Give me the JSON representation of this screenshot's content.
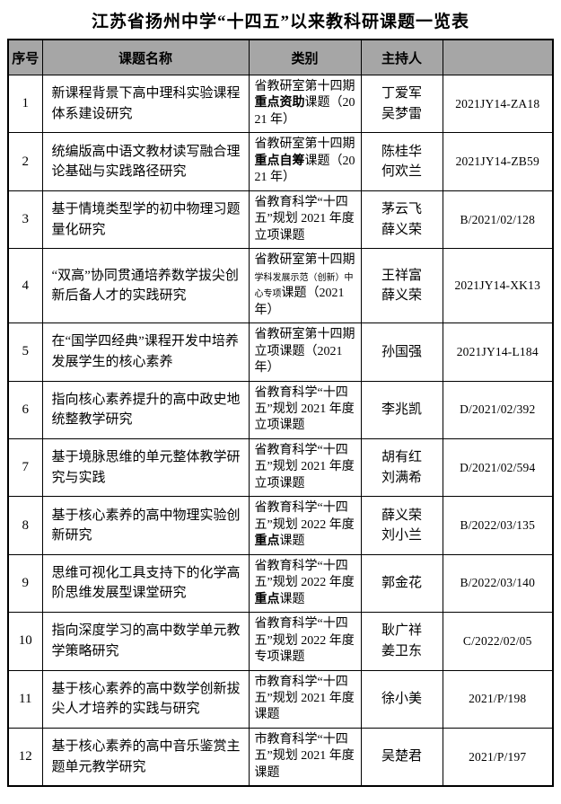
{
  "title": "江苏省扬州中学“十四五”以来教科研课题一览表",
  "colors": {
    "header_bg": "#a6a6a6",
    "border": "#000000",
    "text": "#000000"
  },
  "table": {
    "headers": [
      "序号",
      "课题名称",
      "类别",
      "主持人",
      ""
    ],
    "rows": [
      {
        "no": "1",
        "name": "新课程背景下高中理科实验课程体系建设研究",
        "category": [
          {
            "t": "省教研室第十四期"
          },
          {
            "t": "重点资助",
            "b": true
          },
          {
            "t": "课题（2021 年）"
          }
        ],
        "hosts": [
          "丁爱军",
          "吴梦雷"
        ],
        "code": "2021JY14-ZA18"
      },
      {
        "no": "2",
        "name": "统编版高中语文教材读写融合理论基础与实践路径研究",
        "category": [
          {
            "t": "省教研室第十四期"
          },
          {
            "t": "重点自筹",
            "b": true
          },
          {
            "t": "课题（2021 年）"
          }
        ],
        "hosts": [
          "陈桂华",
          "何欢兰"
        ],
        "code": "2021JY14-ZB59"
      },
      {
        "no": "3",
        "name": "基于情境类型学的初中物理习题量化研究",
        "category": [
          {
            "t": "省教育科学“十四五”规划 2021 年度立项课题"
          }
        ],
        "hosts": [
          "茅云飞",
          "薛义荣"
        ],
        "code": "B/2021/02/128"
      },
      {
        "no": "4",
        "name": "“双高”协同贯通培养数学拔尖创新后备人才的实践研究",
        "category": [
          {
            "t": "省教研室第十四期"
          },
          {
            "t": "学科发展示范（创新）中心专项",
            "s": true
          },
          {
            "t": "课题（2021 年）"
          }
        ],
        "hosts": [
          "王祥富",
          "薛义荣"
        ],
        "code": "2021JY14-XK13"
      },
      {
        "no": "5",
        "name": "在“国学四经典”课程开发中培养发展学生的核心素养",
        "category": [
          {
            "t": "省教研室第十四期立项课题（2021 年）"
          }
        ],
        "hosts": [
          "孙国强"
        ],
        "code": "2021JY14-L184"
      },
      {
        "no": "6",
        "name": "指向核心素养提升的高中政史地统整教学研究",
        "category": [
          {
            "t": "省教育科学“十四五”规划 2021 年度立项课题"
          }
        ],
        "hosts": [
          "李兆凯"
        ],
        "code": "D/2021/02/392"
      },
      {
        "no": "7",
        "name": "基于境脉思维的单元整体教学研究与实践",
        "category": [
          {
            "t": "省教育科学“十四五”规划 2021 年度立项课题"
          }
        ],
        "hosts": [
          "胡有红",
          "刘满希"
        ],
        "code": "D/2021/02/594"
      },
      {
        "no": "8",
        "name": "基于核心素养的高中物理实验创新研究",
        "category": [
          {
            "t": "省教育科学“十四五”规划 2022 年度"
          },
          {
            "t": "重点",
            "b": true
          },
          {
            "t": "课题"
          }
        ],
        "hosts": [
          "薛义荣",
          "刘小兰"
        ],
        "code": "B/2022/03/135"
      },
      {
        "no": "9",
        "name": "思维可视化工具支持下的化学高阶思维发展型课堂研究",
        "category": [
          {
            "t": "省教育科学“十四五”规划 2022 年度"
          },
          {
            "t": "重点",
            "b": true
          },
          {
            "t": "课题"
          }
        ],
        "hosts": [
          "郭金花"
        ],
        "code": "B/2022/03/140"
      },
      {
        "no": "10",
        "name": "指向深度学习的高中数学单元教学策略研究",
        "category": [
          {
            "t": "省教育科学“十四五”规划 2022 年度专项课题"
          }
        ],
        "hosts": [
          "耿广祥",
          "姜卫东"
        ],
        "code": "C/2022/02/05"
      },
      {
        "no": "11",
        "name": "基于核心素养的高中数学创新拔尖人才培养的实践与研究",
        "category": [
          {
            "t": "市教育科学“十四五”规划 2021 年度课题"
          }
        ],
        "hosts": [
          "徐小美"
        ],
        "code": "2021/P/198"
      },
      {
        "no": "12",
        "name": "基于核心素养的高中音乐鉴赏主题单元教学研究",
        "category": [
          {
            "t": "市教育科学“十四五”规划 2021 年度课题"
          }
        ],
        "hosts": [
          "吴楚君"
        ],
        "code": "2021/P/197"
      }
    ]
  }
}
